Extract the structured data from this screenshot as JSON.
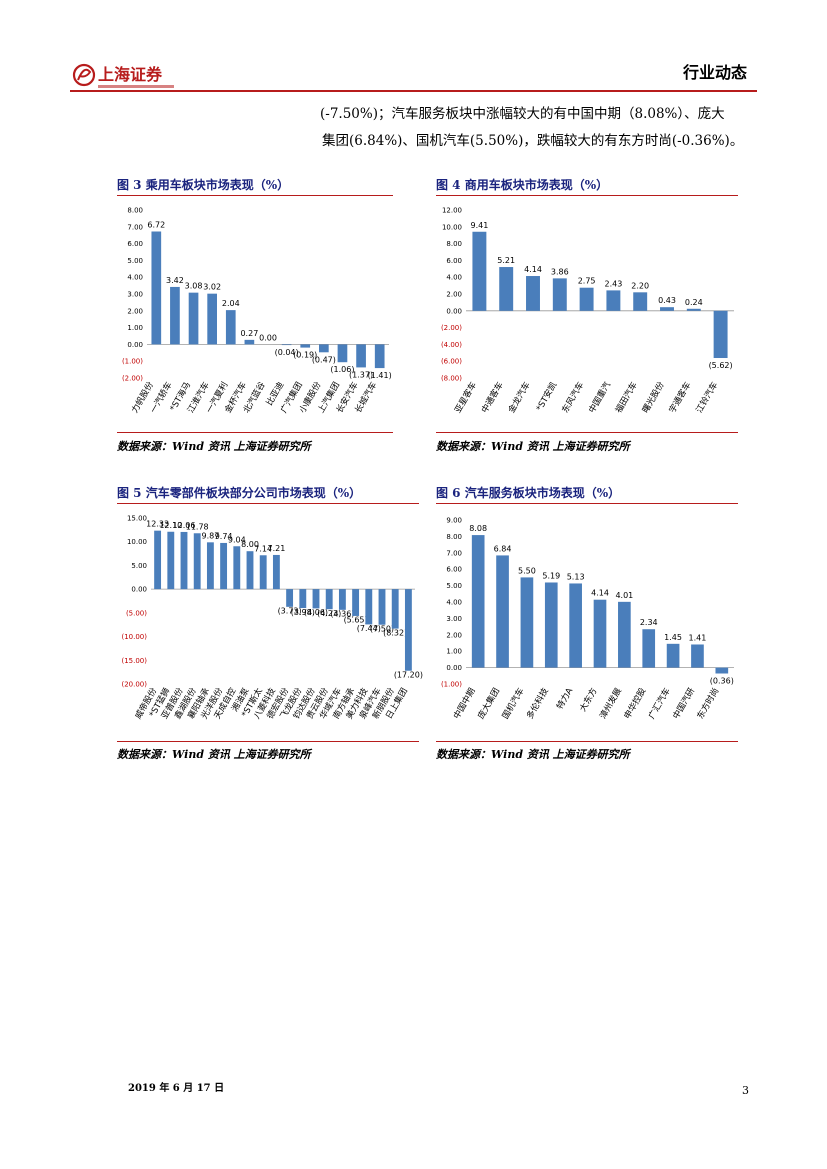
{
  "header": {
    "logo_text": "上海证券",
    "section_title": "行业动态"
  },
  "body_text": {
    "line1": "(-7.50%)；汽车服务板块中涨幅较大的有中国中期（8.08%）、庞大",
    "line2": "集团(6.84%)、国机汽车(5.50%)，跌幅较大的有东方时尚(-0.36%)。"
  },
  "figures": {
    "fig3": {
      "title": "图 3 乘用车板块市场表现（%）",
      "source": "数据来源：Wind 资讯  上海证券研究所"
    },
    "fig4": {
      "title": "图 4 商用车板块市场表现（%）",
      "source": "数据来源：Wind 资讯  上海证券研究所"
    },
    "fig5": {
      "title": "图 5 汽车零部件板块部分公司市场表现（%）",
      "source": "数据来源：Wind 资讯  上海证券研究所"
    },
    "fig6": {
      "title": "图 6 汽车服务板块市场表现（%）",
      "source": "数据来源：Wind 资讯  上海证券研究所"
    }
  },
  "chart_data": [
    {
      "id": "fig3",
      "type": "bar",
      "categories": [
        "力帆股份",
        "一汽轿车",
        "*ST海马",
        "江淮汽车",
        "一汽夏利",
        "金杯汽车",
        "北汽蓝谷",
        "比亚迪",
        "广汽集团",
        "小康股份",
        "上汽集团",
        "长安汽车",
        "长城汽车"
      ],
      "values": [
        6.72,
        3.42,
        3.08,
        3.02,
        2.04,
        0.27,
        0.0,
        -0.04,
        -0.19,
        -0.47,
        -1.06,
        -1.37,
        -1.41
      ],
      "data_labels": [
        "6.72",
        "3.42",
        "3.08",
        "3.02",
        "2.04",
        "0.27",
        "0.00",
        "(0.04)",
        "(0.19)",
        "(0.47)",
        "(1.06)",
        "(1.37)",
        "(1.41)"
      ],
      "ylim": [
        -2,
        8
      ],
      "yticks": [
        8,
        7,
        6,
        5,
        4,
        3,
        2,
        1,
        0,
        -1,
        -2
      ],
      "ytick_labels": [
        "8.00",
        "7.00",
        "6.00",
        "5.00",
        "4.00",
        "3.00",
        "2.00",
        "1.00",
        "0.00",
        "(1.00)",
        "(2.00)"
      ],
      "color": "#4a7ebb",
      "grid": false
    },
    {
      "id": "fig4",
      "type": "bar",
      "categories": [
        "亚星客车",
        "中通客车",
        "金龙汽车",
        "*ST安凯",
        "东风汽车",
        "中国重汽",
        "福田汽车",
        "曙光股份",
        "宇通客车",
        "江铃汽车"
      ],
      "values": [
        9.41,
        5.21,
        4.14,
        3.86,
        2.75,
        2.43,
        2.2,
        0.43,
        0.24,
        -5.62
      ],
      "data_labels": [
        "9.41",
        "5.21",
        "4.14",
        "3.86",
        "2.75",
        "2.43",
        "2.20",
        "0.43",
        "0.24",
        "(5.62)"
      ],
      "ylim": [
        -8,
        12
      ],
      "yticks": [
        12,
        10,
        8,
        6,
        4,
        2,
        0,
        -2,
        -4,
        -6,
        -8
      ],
      "ytick_labels": [
        "12.00",
        "10.00",
        "8.00",
        "6.00",
        "4.00",
        "2.00",
        "0.00",
        "(2.00)",
        "(4.00)",
        "(6.00)",
        "(8.00)"
      ],
      "color": "#4a7ebb",
      "grid": false
    },
    {
      "id": "fig5",
      "type": "bar",
      "categories": [
        "威帝股份",
        "*ST猛狮",
        "亚普股份",
        "鑫湖股份",
        "襄阳轴承",
        "光洋股份",
        "天成自控",
        "湘油泵",
        "*ST斯太",
        "八菱科技",
        "德宏股份",
        "飞龙股份",
        "钧达股份",
        "贵云股份",
        "华域汽车",
        "南方轴承",
        "美力科技",
        "泉峰汽车",
        "新朋股份",
        "日上集团"
      ],
      "values": [
        12.33,
        12.1,
        12.06,
        11.78,
        9.87,
        9.74,
        9.04,
        8.0,
        7.14,
        7.21,
        -3.73,
        -3.98,
        -4.06,
        -4.23,
        -4.36,
        -5.65,
        -7.44,
        -7.5,
        -8.32,
        -17.2
      ],
      "data_labels": [
        "12.33",
        "12.10",
        "12.06",
        "11.78",
        "9.87",
        "9.74",
        "9.04",
        "8.00",
        "7.14",
        "7.21",
        "(3.73)",
        "(3.98)",
        "(4.06)",
        "(4.23)",
        "(4.36)",
        "(5.65)",
        "(7.44)",
        "(7.50)",
        "(8.32)",
        "(17.20)"
      ],
      "ylim": [
        -20,
        15
      ],
      "yticks": [
        15,
        10,
        5,
        0,
        -5,
        -10,
        -15,
        -20
      ],
      "ytick_labels": [
        "15.00",
        "10.00",
        "5.00",
        "0.00",
        "(5.00)",
        "(10.00)",
        "(15.00)",
        "(20.00)"
      ],
      "color": "#4a7ebb",
      "grid": false
    },
    {
      "id": "fig6",
      "type": "bar",
      "categories": [
        "中国中期",
        "庞大集团",
        "国机汽车",
        "多伦科技",
        "特力A",
        "大东方",
        "漳州发展",
        "申华控股",
        "广汇汽车",
        "中国汽研",
        "东方时尚"
      ],
      "values": [
        8.08,
        6.84,
        5.5,
        5.19,
        5.13,
        4.14,
        4.01,
        2.34,
        1.45,
        1.41,
        -0.36
      ],
      "data_labels": [
        "8.08",
        "6.84",
        "5.50",
        "5.19",
        "5.13",
        "4.14",
        "4.01",
        "2.34",
        "1.45",
        "1.41",
        "(0.36)"
      ],
      "ylim": [
        -1,
        9
      ],
      "yticks": [
        9,
        8,
        7,
        6,
        5,
        4,
        3,
        2,
        1,
        0,
        -1
      ],
      "ytick_labels": [
        "9.00",
        "8.00",
        "7.00",
        "6.00",
        "5.00",
        "4.00",
        "3.00",
        "2.00",
        "1.00",
        "0.00",
        "(1.00)"
      ],
      "color": "#4a7ebb",
      "grid": false
    }
  ],
  "footer": {
    "date": "2019 年 6 月 17 日",
    "page": "3"
  }
}
